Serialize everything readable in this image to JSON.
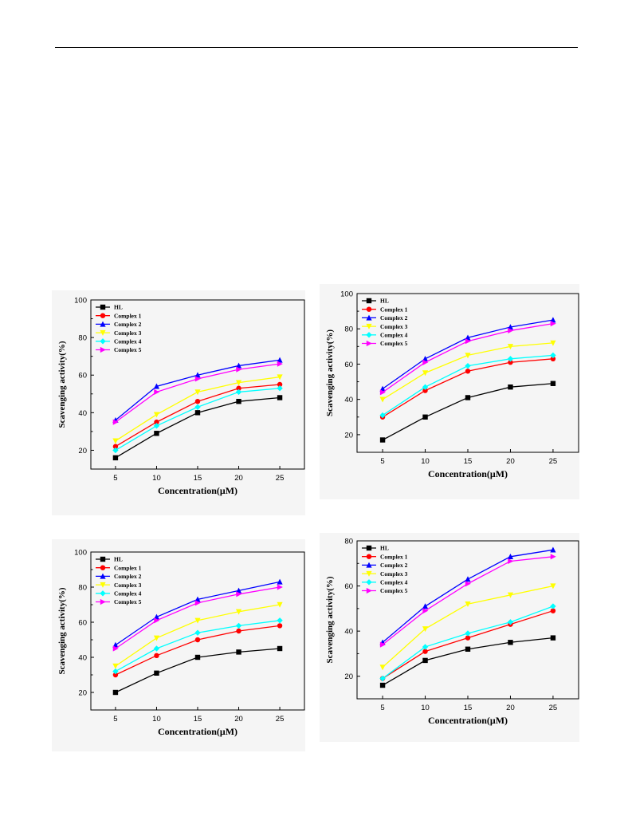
{
  "chart_data": [
    {
      "type": "line",
      "xlabel": "Concentration(μM)",
      "ylabel": "Scavenging activity(%)",
      "x": [
        5,
        10,
        15,
        20,
        25
      ],
      "xlim": [
        2,
        28
      ],
      "ylim": [
        10,
        100
      ],
      "yticks": [
        20,
        40,
        60,
        80,
        100
      ],
      "legend": "top-left",
      "grid": false,
      "series": [
        {
          "name": "HL",
          "color": "#000000",
          "marker": "square",
          "values": [
            16,
            29,
            40,
            46,
            48
          ]
        },
        {
          "name": "Complex 1",
          "color": "#ff0000",
          "marker": "circle",
          "values": [
            22,
            35,
            46,
            53,
            55
          ]
        },
        {
          "name": "Complex 2",
          "color": "#0000ff",
          "marker": "triangle-up",
          "values": [
            36,
            54,
            60,
            65,
            68
          ]
        },
        {
          "name": "Complex 3",
          "color": "#ffff00",
          "marker": "triangle-down",
          "values": [
            25,
            39,
            51,
            56,
            59
          ]
        },
        {
          "name": "Complex 4",
          "color": "#00ffff",
          "marker": "diamond",
          "values": [
            20,
            33,
            43,
            51,
            53
          ]
        },
        {
          "name": "Complex 5",
          "color": "#ff00ff",
          "marker": "triangle-right",
          "values": [
            35,
            51,
            58,
            63,
            66
          ]
        }
      ]
    },
    {
      "type": "line",
      "xlabel": "Concentration(μM)",
      "ylabel": "Scavenging activity(%)",
      "x": [
        5,
        10,
        15,
        20,
        25
      ],
      "xlim": [
        2,
        28
      ],
      "ylim": [
        10,
        100
      ],
      "yticks": [
        20,
        40,
        60,
        80,
        100
      ],
      "legend": "top-left",
      "grid": false,
      "series": [
        {
          "name": "HL",
          "color": "#000000",
          "marker": "square",
          "values": [
            17,
            30,
            41,
            47,
            49
          ]
        },
        {
          "name": "Complex 1",
          "color": "#ff0000",
          "marker": "circle",
          "values": [
            30,
            45,
            56,
            61,
            63
          ]
        },
        {
          "name": "Complex 2",
          "color": "#0000ff",
          "marker": "triangle-up",
          "values": [
            46,
            63,
            75,
            81,
            85
          ]
        },
        {
          "name": "Complex 3",
          "color": "#ffff00",
          "marker": "triangle-down",
          "values": [
            40,
            55,
            65,
            70,
            72
          ]
        },
        {
          "name": "Complex 4",
          "color": "#00ffff",
          "marker": "diamond",
          "values": [
            31,
            47,
            59,
            63,
            65
          ]
        },
        {
          "name": "Complex 5",
          "color": "#ff00ff",
          "marker": "triangle-right",
          "values": [
            44,
            61,
            73,
            79,
            83
          ]
        }
      ]
    },
    {
      "type": "line",
      "xlabel": "Concentration(μM)",
      "ylabel": "Scavenging activity(%)",
      "x": [
        5,
        10,
        15,
        20,
        25
      ],
      "xlim": [
        2,
        28
      ],
      "ylim": [
        10,
        100
      ],
      "yticks": [
        20,
        40,
        60,
        80,
        100
      ],
      "legend": "top-left",
      "grid": false,
      "series": [
        {
          "name": "HL",
          "color": "#000000",
          "marker": "square",
          "values": [
            20,
            31,
            40,
            43,
            45
          ]
        },
        {
          "name": "Complex 1",
          "color": "#ff0000",
          "marker": "circle",
          "values": [
            30,
            41,
            50,
            55,
            58
          ]
        },
        {
          "name": "Complex 2",
          "color": "#0000ff",
          "marker": "triangle-up",
          "values": [
            47,
            63,
            73,
            78,
            83
          ]
        },
        {
          "name": "Complex 3",
          "color": "#ffff00",
          "marker": "triangle-down",
          "values": [
            35,
            51,
            61,
            66,
            70
          ]
        },
        {
          "name": "Complex 4",
          "color": "#00ffff",
          "marker": "diamond",
          "values": [
            32,
            45,
            54,
            58,
            61
          ]
        },
        {
          "name": "Complex 5",
          "color": "#ff00ff",
          "marker": "triangle-right",
          "values": [
            45,
            61,
            71,
            76,
            80
          ]
        }
      ]
    },
    {
      "type": "line",
      "xlabel": "Concentration(μM)",
      "ylabel": "Scavenging activity(%)",
      "x": [
        5,
        10,
        15,
        20,
        25
      ],
      "xlim": [
        2,
        28
      ],
      "ylim": [
        10,
        80
      ],
      "yticks": [
        20,
        40,
        60,
        80
      ],
      "legend": "top-left",
      "grid": false,
      "series": [
        {
          "name": "HL",
          "color": "#000000",
          "marker": "square",
          "values": [
            16,
            27,
            32,
            35,
            37
          ]
        },
        {
          "name": "Complex 1",
          "color": "#ff0000",
          "marker": "circle",
          "values": [
            19,
            31,
            37,
            43,
            49
          ]
        },
        {
          "name": "Complex 2",
          "color": "#0000ff",
          "marker": "triangle-up",
          "values": [
            35,
            51,
            63,
            73,
            76
          ]
        },
        {
          "name": "Complex 3",
          "color": "#ffff00",
          "marker": "triangle-down",
          "values": [
            24,
            41,
            52,
            56,
            60
          ]
        },
        {
          "name": "Complex 4",
          "color": "#00ffff",
          "marker": "diamond",
          "values": [
            19,
            33,
            39,
            44,
            51
          ]
        },
        {
          "name": "Complex 5",
          "color": "#ff00ff",
          "marker": "triangle-right",
          "values": [
            34,
            49,
            61,
            71,
            73
          ]
        }
      ]
    }
  ]
}
